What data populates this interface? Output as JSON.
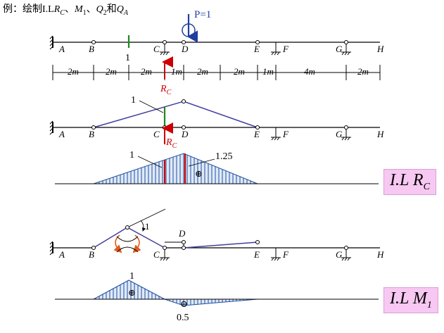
{
  "title": {
    "prefix": "例：绘制I.L",
    "rc_main": "R",
    "rc_sub": "C",
    "sep1": "、",
    "m_main": "M",
    "m_sub": "1",
    "sep2": "、",
    "q_main": "Q",
    "q_sub": "2",
    "conj": "和",
    "qa_main": "Q",
    "qa_sub": "A"
  },
  "load_label": "P=1",
  "section_label": "1",
  "point_labels": {
    "A": "A",
    "B": "B",
    "C": "C",
    "D": "D",
    "E": "E",
    "F": "F",
    "G": "G",
    "H": "H"
  },
  "dims": [
    "2m",
    "2m",
    "2m",
    "1m",
    "2m",
    "2m",
    "1m",
    "4m",
    "2m"
  ],
  "rc_label_main": "R",
  "rc_label_sub": "C",
  "unit_label_1": "1",
  "il_rc": {
    "left_label": "1",
    "peak_label": "1.25",
    "sign": "⊕"
  },
  "tag_rc": {
    "main": "I.L R",
    "sub": "C"
  },
  "mech_angle_label": "1",
  "il_m1": {
    "top_label": "1",
    "bottom_label": "0.5",
    "sign_pos": "⊕",
    "sign_neg": "⊖"
  },
  "tag_m1": {
    "main": "I.L M",
    "sub": "1"
  },
  "colors": {
    "beam": "#000000",
    "load": "#1f3fa0",
    "reaction": "#cc0000",
    "section": "#1a8a1a",
    "mech_line": "#4040a0",
    "fill_line": "#1f4fa0",
    "fill_bg": "#dfe9f7",
    "tag_bg": "#f7c8f2",
    "curl_arrow": "#e05a1a"
  }
}
